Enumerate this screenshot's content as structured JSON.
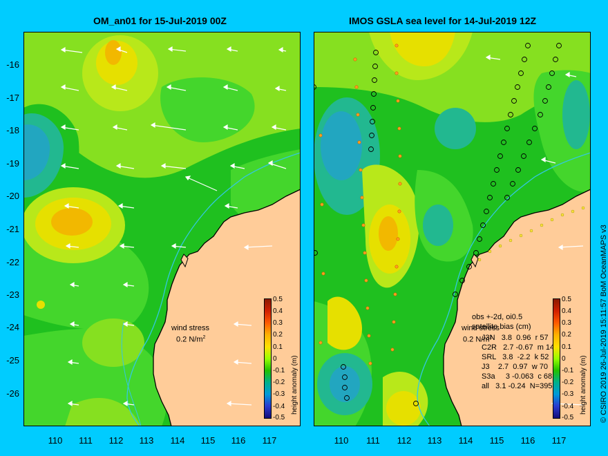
{
  "left_panel": {
    "title": "OM_an01 for 15-Jul-2019 00Z",
    "wind_label": "wind stress",
    "wind_value": "0.2 N/m",
    "wind_unit_sup": "2"
  },
  "right_panel": {
    "title": "IMOS GSLA sea level  for 14-Jul-2019 12Z",
    "wind_label": "wind stress",
    "wind_value": "0.2 N/m",
    "stats_header_1": "obs +-2d, oi0.5",
    "stats_header_2": "satellite bias (cm)",
    "stats_rows": [
      "J3N   3.8  0.96  r 57",
      "C2R   2.7 -0.67  m 14",
      "SRL   3.8  -2.2  k 52",
      "J3    2.7  0.97  w 70",
      "S3a     3 -0.063  c 68",
      "all   3.1 -0.24  N=395"
    ]
  },
  "y_ticks": [
    "-16",
    "-17",
    "-18",
    "-19",
    "-20",
    "-21",
    "-22",
    "-23",
    "-24",
    "-25",
    "-26"
  ],
  "x_ticks": [
    "110",
    "111",
    "112",
    "113",
    "114",
    "115",
    "116",
    "117"
  ],
  "colorbar": {
    "ticks": [
      "0.5",
      "0.4",
      "0.3",
      "0.2",
      "0.1",
      "0",
      "-0.1",
      "-0.2",
      "-0.3",
      "-0.4",
      "-0.5"
    ],
    "label": "height anomaly (m)",
    "range": [
      -0.5,
      0.5
    ]
  },
  "credit": "© CSIRO 2019   26-Jul-2019 15:11:57 BoM OceanMAPS v3",
  "colors": {
    "frame": "#00ccff",
    "land": "#ffcc99",
    "green_dark": "#1fc01f",
    "green_mid": "#44d62c",
    "green_light": "#86e020",
    "yellow_green": "#b8e81a",
    "yellow": "#e6e000",
    "orange": "#f2b800",
    "teal": "#22b890",
    "cyan": "#22a6c0",
    "coast": "#000000",
    "isobath": "#33c8e0",
    "arrows": "#ffffff"
  }
}
